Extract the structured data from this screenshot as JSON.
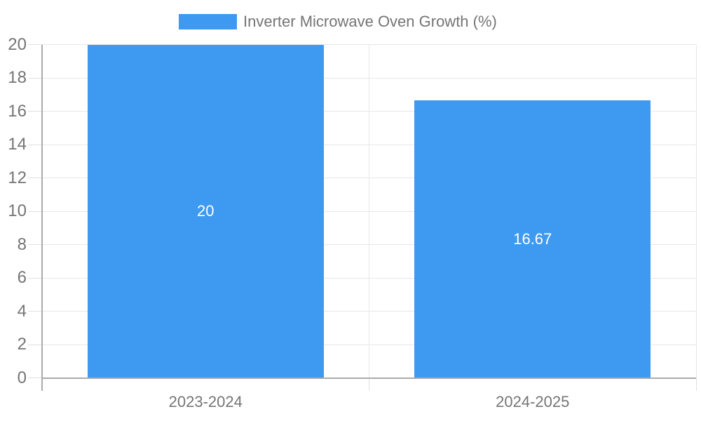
{
  "legend": {
    "label": "Inverter Microwave Oven Growth (%)",
    "swatch_color": "#3D9AF0"
  },
  "chart_data": {
    "type": "bar",
    "title": "Inverter Microwave Oven Growth (%)",
    "categories": [
      "2023-2024",
      "2024-2025"
    ],
    "values": [
      20,
      16.67
    ],
    "bar_labels": [
      "20",
      "16.67"
    ],
    "xlabel": "",
    "ylabel": "",
    "ylim": [
      0,
      20
    ],
    "yticks": [
      0,
      2,
      4,
      6,
      8,
      10,
      12,
      14,
      16,
      18,
      20
    ],
    "ytick_labels": [
      "0",
      "2",
      "4",
      "6",
      "8",
      "10",
      "12",
      "14",
      "16",
      "18",
      "20"
    ],
    "grid": "on",
    "legend_position": "top-center",
    "bar_color": "#3D9AF0",
    "value_label_color": "#ffffff"
  },
  "colors": {
    "background": "#ffffff",
    "bar": "#3D9AF0",
    "grid": "#e7e7e7",
    "tick": "#e0e0e0",
    "axis": "#aaaaaa",
    "text": "#757575",
    "value_label": "#ffffff"
  }
}
